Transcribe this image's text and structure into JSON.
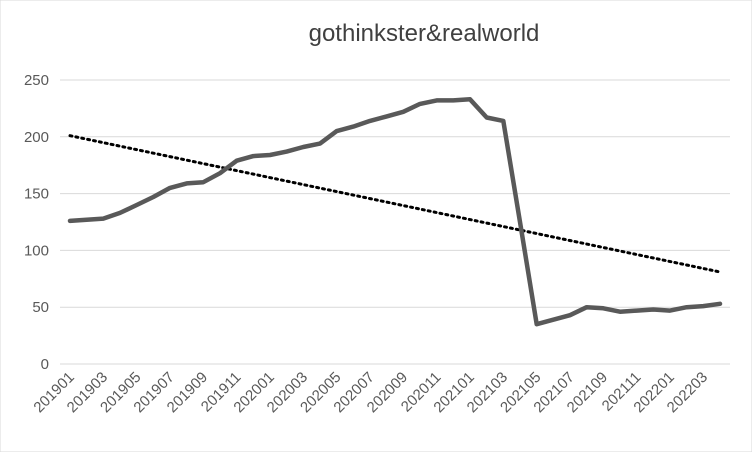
{
  "chart_data": {
    "type": "line",
    "title": "gothinkster&realworld",
    "xlabel": "",
    "ylabel": "",
    "ylim": [
      0,
      250
    ],
    "yticks": [
      0,
      50,
      100,
      150,
      200,
      250
    ],
    "grid": true,
    "legend": "none",
    "x": [
      "201901",
      "201902",
      "201903",
      "201904",
      "201905",
      "201906",
      "201907",
      "201908",
      "201909",
      "201910",
      "201911",
      "201912",
      "202001",
      "202002",
      "202003",
      "202004",
      "202005",
      "202006",
      "202007",
      "202008",
      "202009",
      "202010",
      "202011",
      "202012",
      "202101",
      "202102",
      "202103",
      "202104",
      "202105",
      "202106",
      "202107",
      "202108",
      "202109",
      "202110",
      "202111",
      "202112",
      "202201",
      "202202",
      "202203",
      "202204"
    ],
    "x_tick_labels": [
      "201901",
      "201903",
      "201905",
      "201907",
      "201909",
      "201911",
      "202001",
      "202003",
      "202005",
      "202007",
      "202009",
      "202011",
      "202101",
      "202103",
      "202105",
      "202107",
      "202109",
      "202111",
      "202201",
      "202203"
    ],
    "series": [
      {
        "values": [
          126,
          127,
          128,
          133,
          140,
          147,
          155,
          159,
          160,
          168,
          179,
          183,
          184,
          187,
          191,
          194,
          205,
          209,
          214,
          218,
          222,
          229,
          232,
          232,
          233,
          217,
          214,
          125,
          35,
          39,
          43,
          50,
          49,
          46,
          47,
          48,
          47,
          50,
          51,
          53
        ],
        "color": "#595959"
      }
    ],
    "trendline": {
      "type": "linear",
      "start": 201,
      "end": 81,
      "style": "dotted",
      "color": "#000000"
    }
  }
}
